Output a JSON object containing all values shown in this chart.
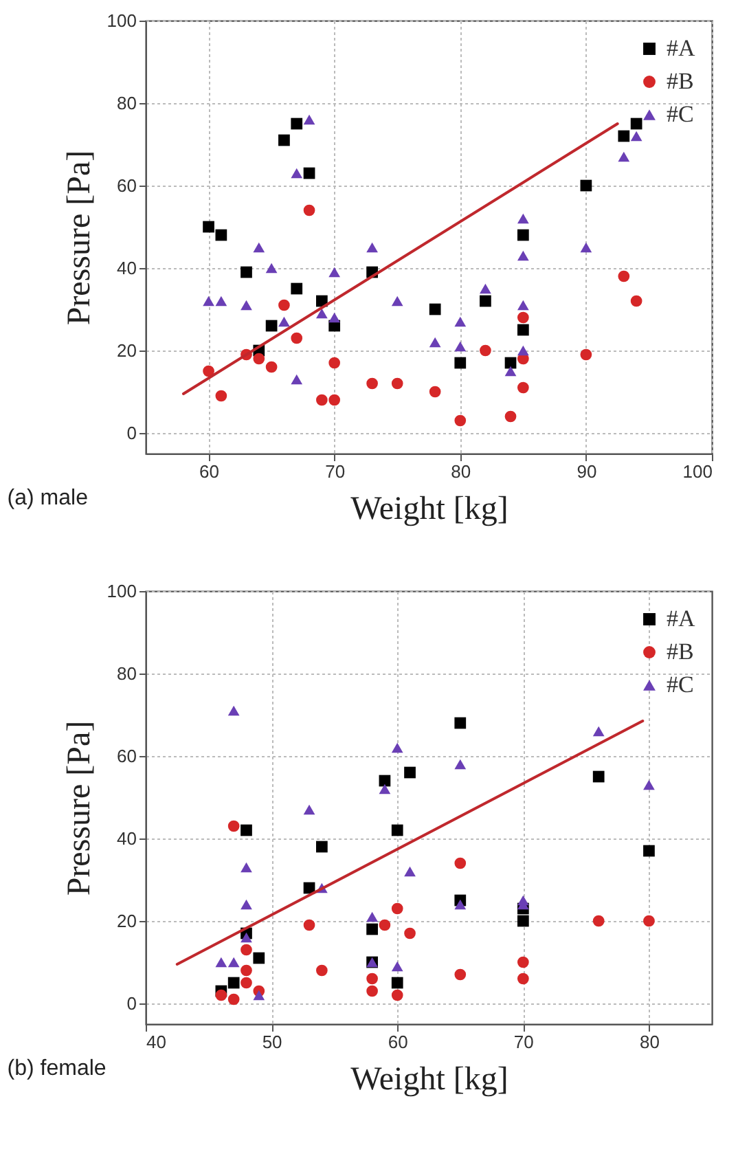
{
  "chart_data": [
    {
      "type": "scatter",
      "xlabel": "Weight [kg]",
      "ylabel": "Pressure [Pa]",
      "annotations": [
        "(a) male"
      ],
      "xlim": [
        55,
        100
      ],
      "xticks": [
        60,
        70,
        80,
        90,
        100
      ],
      "ylim": [
        -5,
        100
      ],
      "yticks": [
        0,
        20,
        40,
        60,
        80,
        100
      ],
      "grid": true,
      "legend": "top right",
      "series": [
        {
          "name": "#A",
          "color": "#000000",
          "marker": "square",
          "x": [
            60,
            61,
            63,
            64,
            65,
            66,
            67,
            67,
            68,
            69,
            70,
            73,
            78,
            80,
            82,
            84,
            85,
            85,
            90,
            93,
            94
          ],
          "values": [
            50,
            48,
            39,
            20,
            26,
            71,
            75,
            35,
            63,
            32,
            26,
            39,
            30,
            17,
            32,
            17,
            48,
            25,
            60,
            72,
            75
          ]
        },
        {
          "name": "#B",
          "color": "#d62728",
          "marker": "circle",
          "x": [
            60,
            61,
            63,
            64,
            65,
            66,
            67,
            68,
            69,
            70,
            70,
            73,
            75,
            78,
            80,
            82,
            84,
            85,
            85,
            85,
            90,
            93,
            94
          ],
          "values": [
            15,
            9,
            19,
            18,
            16,
            31,
            23,
            54,
            8,
            17,
            8,
            12,
            12,
            10,
            3,
            20,
            4,
            28,
            18,
            11,
            19,
            38,
            32
          ]
        },
        {
          "name": "#C",
          "color": "#6a3fb5",
          "marker": "triangle",
          "x": [
            60,
            61,
            63,
            64,
            65,
            66,
            67,
            67,
            68,
            69,
            70,
            70,
            73,
            75,
            78,
            80,
            80,
            82,
            84,
            85,
            85,
            85,
            85,
            90,
            93,
            94
          ],
          "values": [
            32,
            32,
            31,
            45,
            40,
            27,
            63,
            13,
            76,
            29,
            28,
            39,
            45,
            32,
            22,
            27,
            21,
            35,
            15,
            52,
            43,
            31,
            20,
            45,
            67,
            72
          ]
        },
        {
          "type": "line",
          "color": "#c0282d",
          "marker": "none",
          "x": [
            58,
            92.5
          ],
          "values": [
            9.5,
            75
          ]
        }
      ]
    },
    {
      "type": "scatter",
      "xlabel": "Weight [kg]",
      "ylabel": "Pressure [Pa]",
      "annotations": [
        "(b) female"
      ],
      "xlim": [
        40,
        85
      ],
      "xticks": [
        40,
        50,
        60,
        70,
        80
      ],
      "ylim": [
        -5,
        100
      ],
      "yticks": [
        0,
        20,
        40,
        60,
        80,
        100
      ],
      "grid": true,
      "legend": "top right",
      "series": [
        {
          "name": "#A",
          "color": "#000000",
          "marker": "square",
          "x": [
            46,
            47,
            48,
            48,
            49,
            53,
            54,
            58,
            58,
            59,
            60,
            60,
            61,
            65,
            65,
            70,
            70,
            76,
            80
          ],
          "values": [
            3,
            5,
            42,
            17,
            11,
            28,
            38,
            18,
            10,
            54,
            42,
            5,
            56,
            68,
            25,
            20,
            23,
            55,
            37
          ]
        },
        {
          "name": "#B",
          "color": "#d62728",
          "marker": "circle",
          "x": [
            46,
            47,
            47,
            48,
            48,
            48,
            49,
            53,
            54,
            58,
            58,
            59,
            60,
            60,
            61,
            65,
            65,
            70,
            70,
            76,
            80
          ],
          "values": [
            2,
            43,
            1,
            13,
            8,
            5,
            3,
            19,
            8,
            6,
            3,
            19,
            23,
            2,
            17,
            34,
            7,
            10,
            6,
            20,
            20
          ]
        },
        {
          "name": "#C",
          "color": "#6a3fb5",
          "marker": "triangle",
          "x": [
            46,
            47,
            47,
            48,
            48,
            48,
            49,
            53,
            54,
            58,
            58,
            59,
            60,
            60,
            61,
            65,
            65,
            70,
            70,
            76,
            80
          ],
          "values": [
            10,
            10,
            71,
            33,
            24,
            16,
            2,
            47,
            28,
            21,
            10,
            52,
            62,
            9,
            32,
            58,
            24,
            25,
            24,
            66,
            53
          ]
        },
        {
          "type": "line",
          "color": "#c0282d",
          "marker": "none",
          "x": [
            42.5,
            79.5
          ],
          "values": [
            9.5,
            68.5
          ]
        }
      ]
    }
  ]
}
